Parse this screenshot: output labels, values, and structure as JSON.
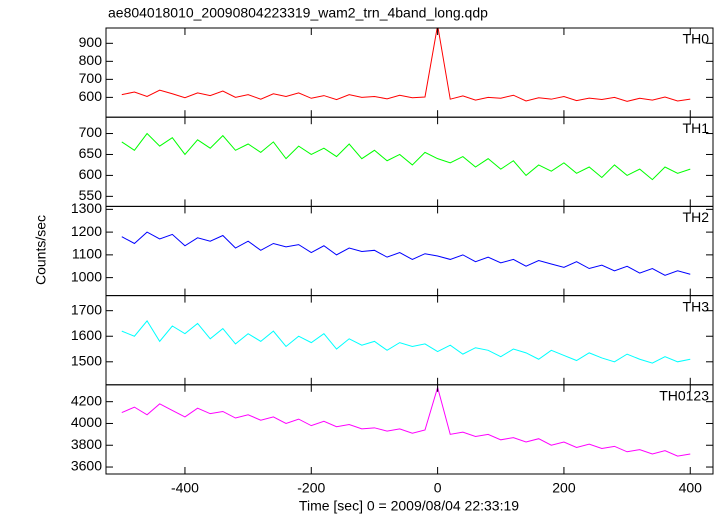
{
  "chart_data": [
    {
      "type": "line",
      "title": "ae804018010_20090804223319_wam2_trn_4band_long.qdp",
      "x": [
        -500,
        -480,
        -460,
        -440,
        -420,
        -400,
        -380,
        -360,
        -340,
        -320,
        -300,
        -280,
        -260,
        -240,
        -220,
        -200,
        -180,
        -160,
        -140,
        -120,
        -100,
        -80,
        -60,
        -40,
        -20,
        0,
        20,
        40,
        60,
        80,
        100,
        120,
        140,
        160,
        180,
        200,
        220,
        240,
        260,
        280,
        300,
        320,
        340,
        360,
        380,
        400
      ],
      "series": [
        {
          "name": "TH0",
          "color": "#ff0000",
          "values": [
            615,
            630,
            605,
            640,
            620,
            598,
            625,
            610,
            635,
            600,
            615,
            590,
            620,
            605,
            625,
            595,
            610,
            588,
            615,
            600,
            605,
            592,
            612,
            598,
            602,
            1000,
            590,
            608,
            585,
            600,
            595,
            612,
            580,
            598,
            590,
            605,
            582,
            596,
            588,
            600,
            578,
            595,
            585,
            602,
            580,
            590
          ]
        }
      ],
      "xlim": [
        -525,
        436
      ],
      "xticks": [
        -400,
        -200,
        0,
        200,
        400
      ],
      "ylim": [
        490,
        985
      ],
      "yticks": [
        600,
        700,
        800,
        900
      ]
    },
    {
      "type": "line",
      "x": [
        -500,
        -480,
        -460,
        -440,
        -420,
        -400,
        -380,
        -360,
        -340,
        -320,
        -300,
        -280,
        -260,
        -240,
        -220,
        -200,
        -180,
        -160,
        -140,
        -120,
        -100,
        -80,
        -60,
        -40,
        -20,
        0,
        20,
        40,
        60,
        80,
        100,
        120,
        140,
        160,
        180,
        200,
        220,
        240,
        260,
        280,
        300,
        320,
        340,
        360,
        380,
        400
      ],
      "series": [
        {
          "name": "TH1",
          "color": "#00ff00",
          "values": [
            680,
            660,
            700,
            670,
            690,
            650,
            685,
            665,
            695,
            660,
            675,
            655,
            680,
            640,
            670,
            650,
            665,
            645,
            675,
            640,
            660,
            635,
            650,
            625,
            655,
            640,
            630,
            645,
            620,
            640,
            615,
            635,
            600,
            625,
            610,
            630,
            605,
            620,
            595,
            625,
            600,
            615,
            590,
            620,
            605,
            615
          ]
        }
      ],
      "xlim": [
        -525,
        436
      ],
      "xticks": [
        -400,
        -200,
        0,
        200,
        400
      ],
      "ylim": [
        526,
        739
      ],
      "yticks": [
        550,
        600,
        650,
        700
      ]
    },
    {
      "type": "line",
      "ylabel": "Counts/sec",
      "x": [
        -500,
        -480,
        -460,
        -440,
        -420,
        -400,
        -380,
        -360,
        -340,
        -320,
        -300,
        -280,
        -260,
        -240,
        -220,
        -200,
        -180,
        -160,
        -140,
        -120,
        -100,
        -80,
        -60,
        -40,
        -20,
        0,
        20,
        40,
        60,
        80,
        100,
        120,
        140,
        160,
        180,
        200,
        220,
        240,
        260,
        280,
        300,
        320,
        340,
        360,
        380,
        400
      ],
      "series": [
        {
          "name": "TH2",
          "color": "#0000ff",
          "values": [
            1180,
            1150,
            1200,
            1170,
            1190,
            1140,
            1175,
            1160,
            1185,
            1130,
            1160,
            1120,
            1150,
            1135,
            1145,
            1110,
            1140,
            1100,
            1130,
            1115,
            1120,
            1090,
            1110,
            1080,
            1105,
            1095,
            1080,
            1100,
            1070,
            1090,
            1065,
            1080,
            1050,
            1075,
            1060,
            1045,
            1070,
            1040,
            1055,
            1030,
            1050,
            1020,
            1040,
            1010,
            1030,
            1015
          ]
        }
      ],
      "xlim": [
        -525,
        436
      ],
      "xticks": [
        -400,
        -200,
        0,
        200,
        400
      ],
      "ylim": [
        921,
        1313
      ],
      "yticks": [
        1000,
        1100,
        1200,
        1300
      ]
    },
    {
      "type": "line",
      "x": [
        -500,
        -480,
        -460,
        -440,
        -420,
        -400,
        -380,
        -360,
        -340,
        -320,
        -300,
        -280,
        -260,
        -240,
        -220,
        -200,
        -180,
        -160,
        -140,
        -120,
        -100,
        -80,
        -60,
        -40,
        -20,
        0,
        20,
        40,
        60,
        80,
        100,
        120,
        140,
        160,
        180,
        200,
        220,
        240,
        260,
        280,
        300,
        320,
        340,
        360,
        380,
        400
      ],
      "series": [
        {
          "name": "TH3",
          "color": "#00ffff",
          "values": [
            1620,
            1600,
            1660,
            1580,
            1640,
            1610,
            1650,
            1590,
            1630,
            1570,
            1610,
            1580,
            1620,
            1560,
            1600,
            1575,
            1610,
            1550,
            1590,
            1565,
            1580,
            1545,
            1575,
            1560,
            1570,
            1540,
            1565,
            1530,
            1555,
            1545,
            1520,
            1550,
            1535,
            1510,
            1545,
            1525,
            1505,
            1535,
            1515,
            1500,
            1530,
            1510,
            1495,
            1520,
            1500,
            1510
          ]
        }
      ],
      "xlim": [
        -525,
        436
      ],
      "xticks": [
        -400,
        -200,
        0,
        200,
        400
      ],
      "ylim": [
        1410,
        1759
      ],
      "yticks": [
        1500,
        1600,
        1700
      ]
    },
    {
      "type": "line",
      "xlabel": "Time [sec] 0 = 2009/08/04 22:33:19",
      "x": [
        -500,
        -480,
        -460,
        -440,
        -420,
        -400,
        -380,
        -360,
        -340,
        -320,
        -300,
        -280,
        -260,
        -240,
        -220,
        -200,
        -180,
        -160,
        -140,
        -120,
        -100,
        -80,
        -60,
        -40,
        -20,
        0,
        20,
        40,
        60,
        80,
        100,
        120,
        140,
        160,
        180,
        200,
        220,
        240,
        260,
        280,
        300,
        320,
        340,
        360,
        380,
        400
      ],
      "series": [
        {
          "name": "TH0123",
          "color": "#ff00ff",
          "values": [
            4100,
            4150,
            4080,
            4180,
            4120,
            4060,
            4140,
            4090,
            4110,
            4050,
            4080,
            4030,
            4060,
            4000,
            4040,
            3980,
            4020,
            3970,
            3990,
            3950,
            3960,
            3930,
            3950,
            3910,
            3940,
            4330,
            3900,
            3920,
            3880,
            3900,
            3850,
            3870,
            3830,
            3860,
            3800,
            3830,
            3780,
            3810,
            3770,
            3790,
            3740,
            3760,
            3720,
            3750,
            3700,
            3720
          ]
        }
      ],
      "xlim": [
        -525,
        436
      ],
      "xticks": [
        -400,
        -200,
        0,
        200,
        400
      ],
      "ylim": [
        3536,
        4355
      ],
      "yticks": [
        3600,
        3800,
        4000,
        4200
      ]
    }
  ]
}
